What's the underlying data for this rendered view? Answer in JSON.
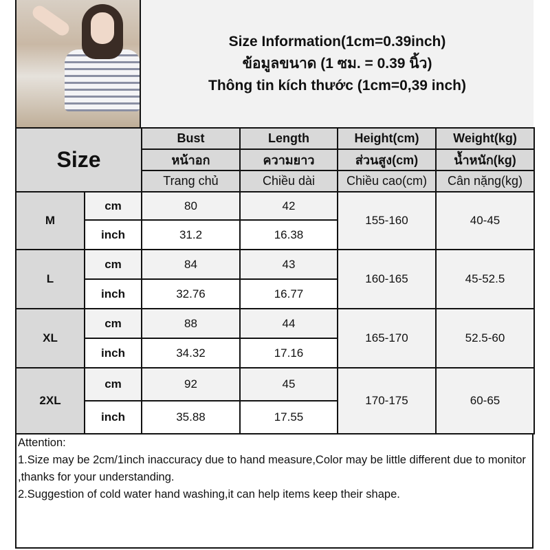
{
  "title_lines": [
    "Size Information(1cm=0.39inch)",
    "ข้อมูลขนาด (1 ซม. = 0.39 นิ้ว)",
    "Thông tin kích thước (1cm=0,39 inch)"
  ],
  "size_label": "Size",
  "headers": [
    [
      "Bust",
      "หน้าอก",
      "Trang chủ"
    ],
    [
      "Length",
      "ความยาว",
      "Chiều dài"
    ],
    [
      "Height(cm)",
      "ส่วนสูง(cm)",
      "Chiều cao(cm)"
    ],
    [
      "Weight(kg)",
      "น้ำหนัก(kg)",
      "Cân nặng(kg)"
    ]
  ],
  "units": [
    "cm",
    "inch"
  ],
  "rows": [
    {
      "size": "M",
      "cm": [
        "80",
        "42"
      ],
      "inch": [
        "31.2",
        "16.38"
      ],
      "height": "155-160",
      "weight": "40-45"
    },
    {
      "size": "L",
      "cm": [
        "84",
        "43"
      ],
      "inch": [
        "32.76",
        "16.77"
      ],
      "height": "160-165",
      "weight": "45-52.5"
    },
    {
      "size": "XL",
      "cm": [
        "88",
        "44"
      ],
      "inch": [
        "34.32",
        "17.16"
      ],
      "height": "165-170",
      "weight": "52.5-60"
    },
    {
      "size": "2XL",
      "cm": [
        "92",
        "45"
      ],
      "inch": [
        "35.88",
        "17.55"
      ],
      "height": "170-175",
      "weight": "60-65"
    }
  ],
  "attention": [
    "Attention:",
    "1.Size may be 2cm/1inch inaccuracy due to hand measure,Color may be little different due to monitor ,thanks for your understanding.",
    "2.Suggestion of cold water hand washing,it can help items keep their shape."
  ]
}
